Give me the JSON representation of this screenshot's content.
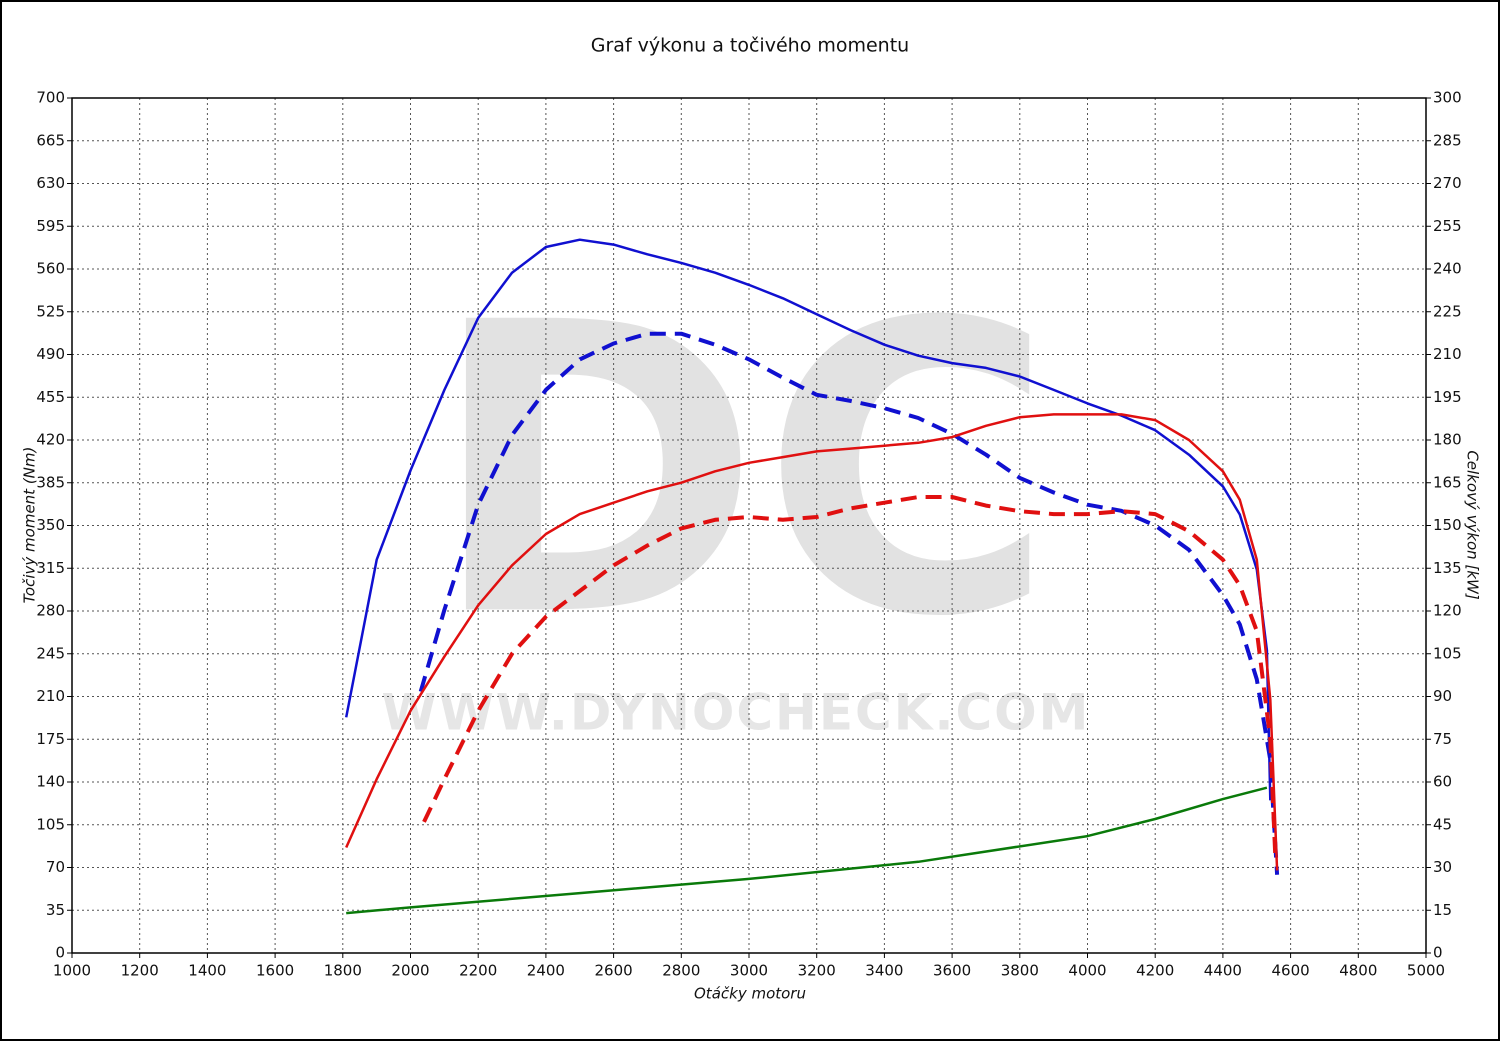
{
  "chart_data": {
    "type": "line",
    "title": "Graf výkonu a točivého momentu",
    "x_label": "Otáčky motoru",
    "y_label": "Točivý moment (Nm)",
    "y2_label": "Celkový výkon [kW]",
    "watermark": [
      "DC",
      "WWW.DYNOCHECK.COM"
    ],
    "xlim": [
      1000,
      5000
    ],
    "xticks": [
      1000,
      1200,
      1400,
      1600,
      1800,
      2000,
      2200,
      2400,
      2600,
      2800,
      3000,
      3200,
      3400,
      3600,
      3800,
      4000,
      4200,
      4400,
      4600,
      4800,
      5000
    ],
    "ylim": [
      0,
      700
    ],
    "yticks": [
      0,
      35,
      70,
      105,
      140,
      175,
      210,
      245,
      280,
      315,
      350,
      385,
      420,
      455,
      490,
      525,
      560,
      595,
      630,
      665,
      700
    ],
    "y2lim": [
      0,
      300
    ],
    "y2ticks": [
      0,
      15,
      30,
      45,
      60,
      75,
      90,
      105,
      120,
      135,
      150,
      165,
      180,
      195,
      210,
      225,
      240,
      255,
      270,
      285,
      300
    ],
    "grid": true,
    "series": [
      {
        "color": "#1010d0",
        "linestyle": "solid",
        "x": [
          1810,
          1900,
          2000,
          2100,
          2200,
          2300,
          2400,
          2500,
          2600,
          2700,
          2800,
          2900,
          3000,
          3100,
          3200,
          3300,
          3400,
          3500,
          3600,
          3700,
          3800,
          3900,
          4000,
          4100,
          4200,
          4300,
          4400,
          4450,
          4500,
          4530,
          4540
        ],
        "values": [
          193,
          322,
          395,
          461,
          520,
          557,
          578,
          584,
          580,
          572,
          565,
          557,
          547,
          536,
          523,
          510,
          498,
          489,
          483,
          479,
          472,
          461,
          450,
          440,
          428,
          408,
          382,
          359,
          314,
          248,
          125
        ]
      },
      {
        "color": "#1010d0",
        "linestyle": "dashed",
        "x": [
          2030,
          2100,
          2200,
          2300,
          2400,
          2500,
          2600,
          2700,
          2800,
          2900,
          3000,
          3100,
          3200,
          3300,
          3400,
          3500,
          3600,
          3700,
          3800,
          3900,
          4000,
          4100,
          4200,
          4300,
          4400,
          4450,
          4500,
          4540,
          4560
        ],
        "values": [
          214,
          281,
          367,
          424,
          461,
          486,
          499,
          507,
          507,
          498,
          486,
          471,
          457,
          452,
          446,
          438,
          425,
          408,
          389,
          377,
          367,
          362,
          350,
          330,
          293,
          269,
          224,
          158,
          64
        ]
      },
      {
        "color": "#e01010",
        "linestyle": "solid",
        "axis": "y2",
        "x": [
          1810,
          1900,
          2000,
          2100,
          2200,
          2300,
          2400,
          2500,
          2600,
          2700,
          2800,
          2900,
          3000,
          3100,
          3200,
          3300,
          3400,
          3500,
          3600,
          3700,
          3800,
          3900,
          4000,
          4100,
          4200,
          4300,
          4400,
          4450,
          4500,
          4540,
          4560
        ],
        "values": [
          37,
          61,
          85,
          104,
          122,
          136,
          147,
          154,
          158,
          162,
          165,
          169,
          172,
          174,
          176,
          177,
          178,
          179,
          181,
          185,
          188,
          189,
          189,
          189,
          187,
          180,
          169,
          159,
          138,
          89,
          29
        ]
      },
      {
        "color": "#e01010",
        "linestyle": "dashed",
        "axis": "y2",
        "x": [
          2040,
          2100,
          2200,
          2300,
          2400,
          2500,
          2600,
          2700,
          2800,
          2900,
          3000,
          3100,
          3200,
          3300,
          3400,
          3500,
          3600,
          3700,
          3800,
          3900,
          4000,
          4100,
          4200,
          4300,
          4400,
          4450,
          4500,
          4540,
          4555
        ],
        "values": [
          46,
          61,
          85,
          105,
          118,
          127,
          136,
          143,
          149,
          152,
          153,
          152,
          153,
          156,
          158,
          160,
          160,
          157,
          155,
          154,
          154,
          155,
          154,
          148,
          138,
          129,
          113,
          75,
          33
        ]
      },
      {
        "color": "#0a7a0a",
        "linestyle": "solid",
        "axis": "y2",
        "x": [
          1810,
          2000,
          2500,
          3000,
          3500,
          4000,
          4200,
          4400,
          4530
        ],
        "values": [
          14,
          16,
          21,
          26,
          32,
          41,
          47,
          54,
          58
        ]
      }
    ]
  }
}
